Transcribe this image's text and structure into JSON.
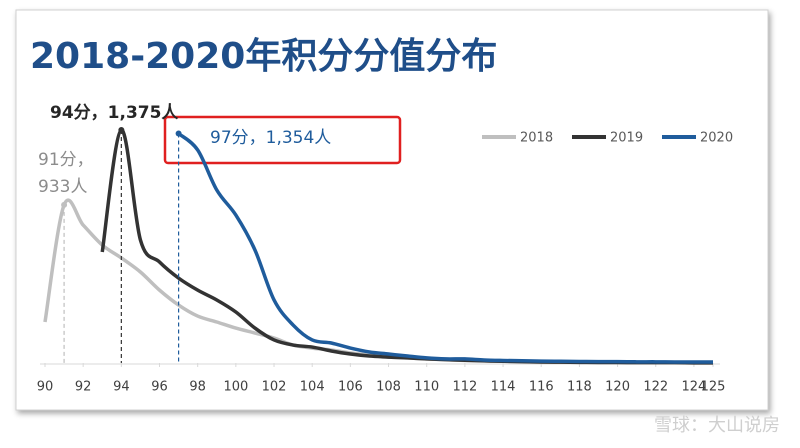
{
  "chart_data": {
    "type": "line",
    "title": "2018-2020年积分分值分布",
    "x": [
      90,
      91,
      92,
      93,
      94,
      95,
      96,
      97,
      98,
      99,
      100,
      101,
      102,
      103,
      104,
      105,
      106,
      107,
      108,
      109,
      110,
      111,
      112,
      113,
      114,
      115,
      116,
      117,
      118,
      119,
      120,
      121,
      122,
      123,
      124,
      125
    ],
    "series": [
      {
        "name": "2018",
        "color": "#bfbfbf",
        "values": [
          242,
          933,
          814,
          696,
          620,
          537,
          430,
          342,
          277,
          242,
          206,
          177,
          147,
          106,
          88,
          77,
          59,
          47,
          35,
          30,
          24,
          20,
          15,
          12,
          10,
          8,
          6,
          5,
          4,
          3,
          3,
          2,
          2,
          2,
          1,
          1
        ]
      },
      {
        "name": "2019",
        "color": "#333333",
        "values": [
          null,
          null,
          null,
          655,
          1375,
          726,
          596,
          501,
          430,
          372,
          301,
          206,
          136,
          106,
          94,
          71,
          53,
          41,
          35,
          30,
          24,
          20,
          16,
          13,
          10,
          8,
          6,
          5,
          4,
          3,
          3,
          2,
          2,
          2,
          1,
          1
        ]
      },
      {
        "name": "2020",
        "color": "#1f5c9c",
        "values": [
          null,
          null,
          null,
          null,
          null,
          null,
          null,
          1354,
          1257,
          1021,
          873,
          667,
          372,
          224,
          136,
          118,
          88,
          65,
          53,
          41,
          30,
          24,
          24,
          18,
          15,
          13,
          11,
          10,
          9,
          8,
          8,
          7,
          7,
          6,
          6,
          6
        ]
      }
    ],
    "annotations": [
      "94分，1,375人",
      "91分，",
      "933人",
      "97分，1,354人"
    ],
    "xlim": [
      90,
      125
    ],
    "xticks": [
      90,
      92,
      94,
      96,
      98,
      100,
      102,
      104,
      106,
      108,
      110,
      112,
      114,
      116,
      118,
      120,
      122,
      124,
      125
    ],
    "ylim": [
      0,
      1375
    ],
    "watermark": "雪球：大山说房"
  }
}
